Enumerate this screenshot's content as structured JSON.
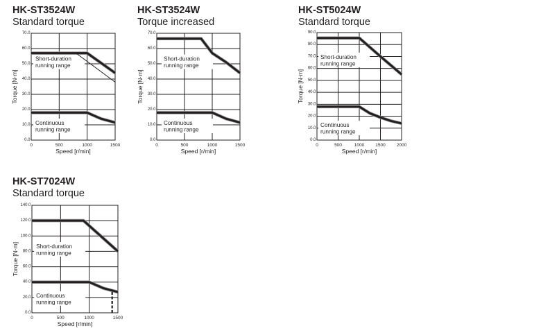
{
  "chart_data": [
    {
      "type": "line",
      "title": "HK-ST3524W",
      "subtitle": "Standard torque",
      "xlabel": "Speed [r/min]",
      "ylabel": "Torque [N·m]",
      "xlim": [
        0,
        1500
      ],
      "ylim": [
        0,
        70
      ],
      "xticks": [
        "0",
        "500",
        "1000",
        "1500"
      ],
      "yticks": [
        "0.0",
        "10.0",
        "20.0",
        "30.0",
        "40.0",
        "50.0",
        "60.0",
        "70.0"
      ],
      "grid": true,
      "series": [
        {
          "name": "Short-duration running range",
          "style": "thick",
          "x": [
            0,
            1000,
            1500
          ],
          "y": [
            57,
            57,
            44
          ]
        },
        {
          "name": "Short-duration running range (alt)",
          "style": "thin",
          "x": [
            800,
            1500
          ],
          "y": [
            57,
            38
          ]
        },
        {
          "name": "Continuous running range",
          "style": "thick",
          "x": [
            0,
            1000,
            1250,
            1500
          ],
          "y": [
            18,
            18,
            14,
            11.5
          ]
        }
      ],
      "annotations": [
        {
          "text": "Short-duration\nrunning range",
          "x": 50,
          "y": 52
        },
        {
          "text": "Continuous\nrunning range",
          "x": 50,
          "y": 10
        }
      ]
    },
    {
      "type": "line",
      "title": "HK-ST3524W",
      "subtitle": "Torque increased",
      "xlabel": "Speed [r/min]",
      "ylabel": "Torque [N·m]",
      "xlim": [
        0,
        1500
      ],
      "ylim": [
        0,
        70
      ],
      "xticks": [
        "0",
        "500",
        "1000",
        "1500"
      ],
      "yticks": [
        "0.0",
        "10.0",
        "20.0",
        "30.0",
        "40.0",
        "50.0",
        "60.0",
        "70.0"
      ],
      "grid": true,
      "series": [
        {
          "name": "Short-duration running range",
          "style": "thick",
          "x": [
            0,
            800,
            1000,
            1250,
            1500
          ],
          "y": [
            66.5,
            66.5,
            57,
            51,
            44
          ]
        },
        {
          "name": "Continuous running range",
          "style": "thick",
          "x": [
            0,
            1000,
            1250,
            1500
          ],
          "y": [
            18,
            18,
            14,
            11.5
          ]
        }
      ],
      "annotations": [
        {
          "text": "Short-duration\nrunning range",
          "x": 100,
          "y": 52
        },
        {
          "text": "Continuous\nrunning range",
          "x": 100,
          "y": 10
        }
      ]
    },
    {
      "type": "line",
      "title": "HK-ST5024W",
      "subtitle": "Standard torque",
      "xlabel": "Speed [r/min]",
      "ylabel": "Torque [N·m]",
      "xlim": [
        0,
        2000
      ],
      "ylim": [
        0,
        90
      ],
      "xticks": [
        "0",
        "500",
        "1000",
        "1500",
        "2000"
      ],
      "yticks": [
        "0.0",
        "10.0",
        "20.0",
        "30.0",
        "40.0",
        "50.0",
        "60.0",
        "70.0",
        "80.0",
        "90.0"
      ],
      "grid": true,
      "series": [
        {
          "name": "Short-duration running range",
          "style": "thick",
          "x": [
            0,
            1000,
            1500,
            2000
          ],
          "y": [
            85.5,
            85.5,
            70,
            55
          ]
        },
        {
          "name": "Continuous running range",
          "style": "thick",
          "x": [
            0,
            1000,
            1250,
            1500,
            1750,
            2000
          ],
          "y": [
            28,
            28,
            22.5,
            19,
            16,
            14
          ]
        }
      ],
      "annotations": [
        {
          "text": "Short-duration\nrunning range",
          "x": 50,
          "y": 68
        },
        {
          "text": "Continuous\nrunning range",
          "x": 50,
          "y": 11
        }
      ]
    },
    {
      "type": "line",
      "title": "HK-ST7024W",
      "subtitle": "Standard torque",
      "xlabel": "Speed [r/min]",
      "ylabel": "Torque [N·m]",
      "xlim": [
        0,
        1500
      ],
      "ylim": [
        0,
        140
      ],
      "xticks": [
        "0",
        "500",
        "1000",
        "1500"
      ],
      "yticks": [
        "0.0",
        "20.0",
        "40.0",
        "60.0",
        "80.0",
        "100.0",
        "120.0",
        "140.0"
      ],
      "grid": true,
      "series": [
        {
          "name": "Short-duration running range",
          "style": "thick",
          "x": [
            0,
            900,
            1500
          ],
          "y": [
            120,
            120,
            80
          ]
        },
        {
          "name": "Continuous running range",
          "style": "thick",
          "x": [
            0,
            1000,
            1250,
            1500
          ],
          "y": [
            40,
            40,
            32,
            27
          ]
        },
        {
          "name": "Limit marker",
          "style": "dashed",
          "x": [
            1400,
            1400
          ],
          "y": [
            0,
            29
          ]
        }
      ],
      "annotations": [
        {
          "text": "Short-duration\nrunning range",
          "x": 50,
          "y": 84
        },
        {
          "text": "Continuous\nrunning range",
          "x": 50,
          "y": 20
        }
      ]
    }
  ],
  "labels": {
    "short_line1": "Short-duration",
    "short_line2": "running range",
    "cont_line1": "Continuous",
    "cont_line2": "running range"
  }
}
